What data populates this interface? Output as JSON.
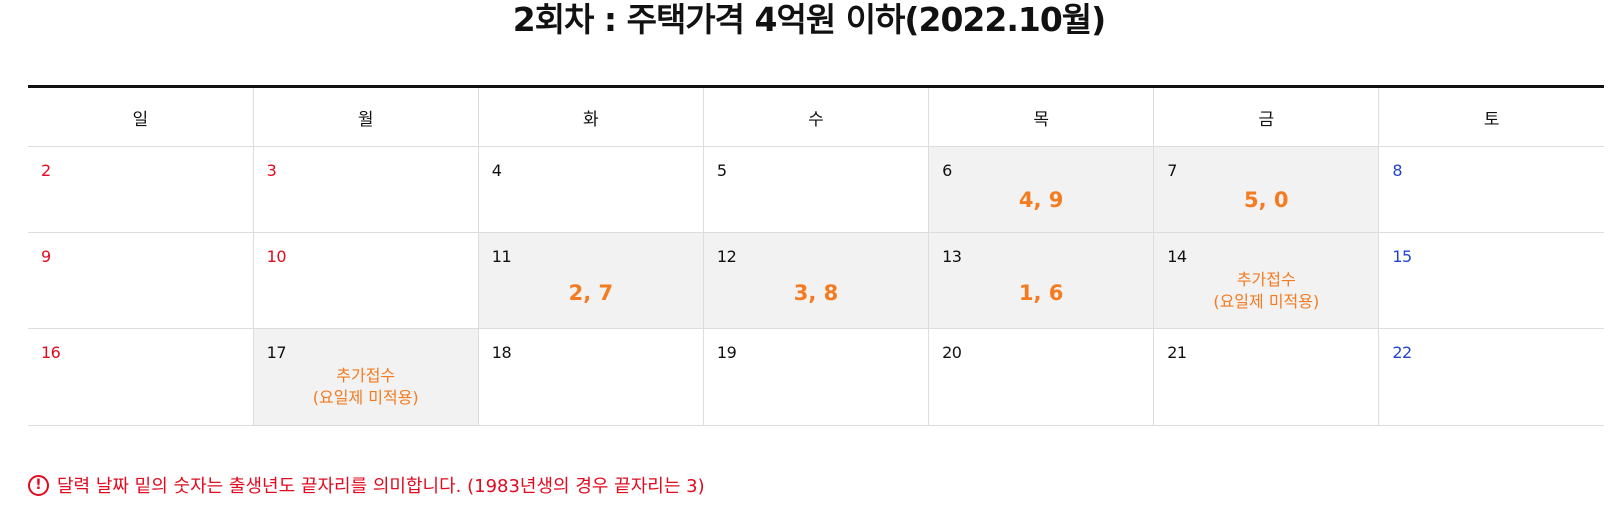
{
  "title": "2회차 : 주택가격 4억원 이하(2022.10월)",
  "weekdays": [
    "일",
    "월",
    "화",
    "수",
    "목",
    "금",
    "토"
  ],
  "weeks": [
    [
      {
        "date": "2",
        "nums": "",
        "note": ""
      },
      {
        "date": "3",
        "nums": "",
        "note": ""
      },
      {
        "date": "4",
        "nums": "",
        "note": ""
      },
      {
        "date": "5",
        "nums": "",
        "note": ""
      },
      {
        "date": "6",
        "nums": "4, 9",
        "note": ""
      },
      {
        "date": "7",
        "nums": "5, 0",
        "note": ""
      },
      {
        "date": "8",
        "nums": "",
        "note": ""
      }
    ],
    [
      {
        "date": "9",
        "nums": "",
        "note": ""
      },
      {
        "date": "10",
        "nums": "",
        "note": ""
      },
      {
        "date": "11",
        "nums": "2, 7",
        "note": ""
      },
      {
        "date": "12",
        "nums": "3, 8",
        "note": ""
      },
      {
        "date": "13",
        "nums": "1, 6",
        "note": ""
      },
      {
        "date": "14",
        "nums": "",
        "note": "추가접수\n(요일제 미적용)"
      },
      {
        "date": "15",
        "nums": "",
        "note": ""
      }
    ],
    [
      {
        "date": "16",
        "nums": "",
        "note": ""
      },
      {
        "date": "17",
        "nums": "",
        "note": "추가접수\n(요일제 미적용)"
      },
      {
        "date": "18",
        "nums": "",
        "note": ""
      },
      {
        "date": "19",
        "nums": "",
        "note": ""
      },
      {
        "date": "20",
        "nums": "",
        "note": ""
      },
      {
        "date": "21",
        "nums": "",
        "note": ""
      },
      {
        "date": "22",
        "nums": "",
        "note": ""
      }
    ]
  ],
  "footnote": {
    "icon": "!",
    "text": "달력 날짜 밑의 숫자는 출생년도 끝자리를 의미합니다. (1983년생의 경우 끝자리는 3)"
  },
  "colors": {
    "sunday": "#e00b20",
    "saturday": "#2244cc",
    "highlight": "#f47b20",
    "shaded_cell": "#f2f2f2"
  }
}
